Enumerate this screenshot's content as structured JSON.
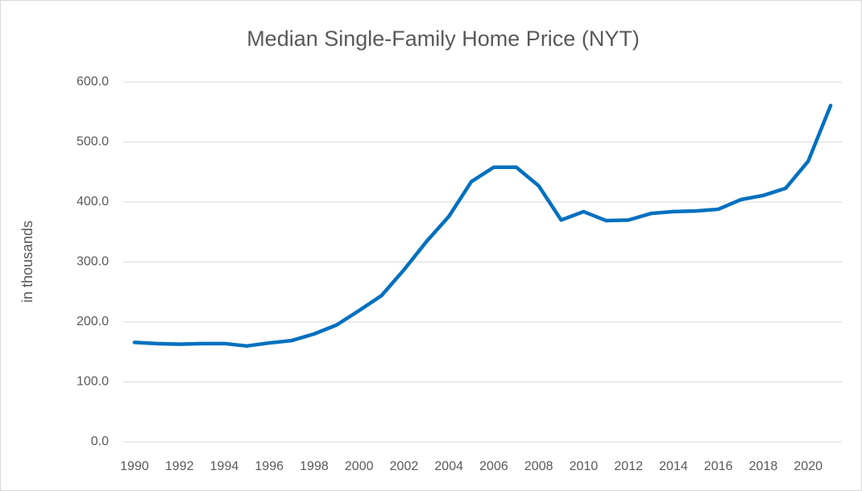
{
  "chart_data": {
    "type": "line",
    "title": "Median Single-Family Home Price (NYT)",
    "y_label": "in thousands",
    "x": [
      1990,
      1991,
      1992,
      1993,
      1994,
      1995,
      1996,
      1997,
      1998,
      1999,
      2000,
      2001,
      2002,
      2003,
      2004,
      2005,
      2006,
      2007,
      2008,
      2009,
      2010,
      2011,
      2012,
      2013,
      2014,
      2015,
      2016,
      2017,
      2018,
      2019,
      2020,
      2021
    ],
    "series": [
      {
        "name": "Median Single-Family Home Price",
        "color": "#0070c0",
        "values": [
          166,
          164,
          163,
          164,
          164,
          160,
          165,
          169,
          180,
          195,
          219,
          244,
          287,
          334,
          376,
          434,
          458,
          458,
          427,
          370,
          384,
          369,
          370,
          381,
          384,
          385,
          388,
          404,
          411,
          423,
          468,
          561
        ]
      }
    ],
    "xlim": [
      1989.5,
      2021.5
    ],
    "xticks": [
      1990,
      1992,
      1994,
      1996,
      1998,
      2000,
      2002,
      2004,
      2006,
      2008,
      2010,
      2012,
      2014,
      2016,
      2018,
      2020
    ],
    "ylim": [
      0,
      600
    ],
    "yticks": [
      {
        "value": 0,
        "label": "0.0"
      },
      {
        "value": 100,
        "label": "100.0"
      },
      {
        "value": 200,
        "label": "200.0"
      },
      {
        "value": 300,
        "label": "300.0"
      },
      {
        "value": 400,
        "label": "400.0"
      },
      {
        "value": 500,
        "label": "500.0"
      },
      {
        "value": 600,
        "label": "600.0"
      }
    ],
    "grid": true
  }
}
